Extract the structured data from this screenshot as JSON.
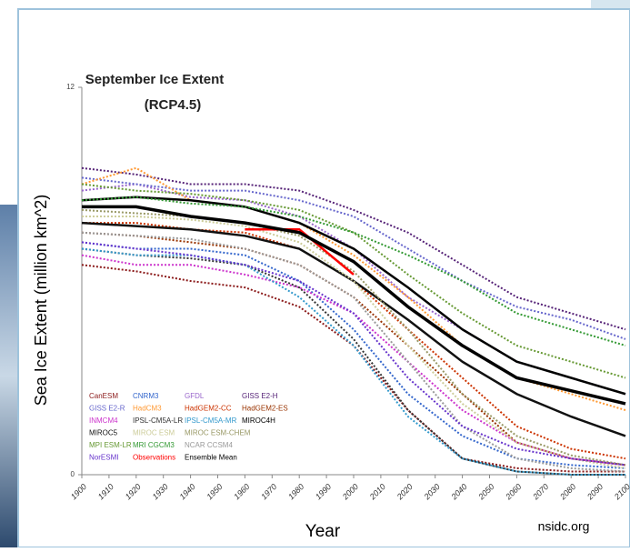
{
  "chart_data": {
    "type": "line",
    "title": "September Ice Extent",
    "subtitle": "(RCP4.5)",
    "y_label": "Sea Ice Extent (million km^2)",
    "x_label": "Year",
    "source": "nsidc.org",
    "x": [
      1900,
      1920,
      1940,
      1960,
      1980,
      2000,
      2020,
      2040,
      2060,
      2080,
      2100
    ],
    "xlim": [
      1900,
      2100
    ],
    "xticks": [
      1900,
      1910,
      1920,
      1930,
      1940,
      1950,
      1960,
      1970,
      1980,
      1990,
      2000,
      2010,
      2020,
      2030,
      2040,
      2050,
      2060,
      2070,
      2080,
      2090,
      2100
    ],
    "ylim": [
      0,
      12
    ],
    "yticks": [
      0,
      12
    ],
    "series": [
      {
        "name": "CanESM",
        "color": "#8b1a1a",
        "values": [
          6.5,
          6.3,
          6.0,
          5.8,
          5.2,
          4.0,
          2.0,
          0.5,
          0.2,
          0.1,
          0.1
        ]
      },
      {
        "name": "CNRM3",
        "color": "#3366cc",
        "values": [
          7.2,
          7.0,
          7.0,
          6.8,
          6.0,
          4.5,
          2.5,
          1.2,
          0.5,
          0.3,
          0.2
        ]
      },
      {
        "name": "GFDL",
        "color": "#9966cc",
        "values": [
          8.8,
          9.0,
          8.6,
          8.5,
          8.0,
          7.0,
          5.5,
          4.5,
          3.5,
          3.0,
          2.5
        ]
      },
      {
        "name": "GISS E2-H",
        "color": "#552277",
        "values": [
          9.5,
          9.3,
          9.0,
          9.0,
          8.8,
          8.2,
          7.5,
          6.5,
          5.5,
          5.0,
          4.5
        ]
      },
      {
        "name": "GISS E2-R",
        "color": "#6666cc",
        "values": [
          9.2,
          9.0,
          8.8,
          8.8,
          8.5,
          8.0,
          7.0,
          6.0,
          5.2,
          4.8,
          4.2
        ]
      },
      {
        "name": "HadCM3",
        "color": "#ff9933",
        "values": [
          9.0,
          9.5,
          8.5,
          8.3,
          7.8,
          6.8,
          5.5,
          4.0,
          3.0,
          2.5,
          2.0
        ]
      },
      {
        "name": "HadGEM2-CC",
        "color": "#cc3300",
        "values": [
          7.8,
          7.8,
          7.6,
          7.5,
          7.0,
          6.0,
          4.5,
          3.0,
          1.5,
          0.8,
          0.5
        ]
      },
      {
        "name": "HadGEM2-ES",
        "color": "#993300",
        "values": [
          7.5,
          7.4,
          7.2,
          7.0,
          6.5,
          5.5,
          4.0,
          2.5,
          1.0,
          0.5,
          0.3
        ]
      },
      {
        "name": "INMCM4",
        "color": "#cc33cc",
        "values": [
          6.8,
          6.5,
          6.5,
          6.2,
          5.8,
          5.0,
          3.5,
          2.0,
          1.0,
          0.5,
          0.3
        ]
      },
      {
        "name": "IPSL-CM5A-LR",
        "color": "#333333",
        "values": [
          7.0,
          6.8,
          6.7,
          6.5,
          5.8,
          4.2,
          2.0,
          0.5,
          0.1,
          0,
          0
        ]
      },
      {
        "name": "IPSL-CM5A-MR",
        "color": "#3399cc",
        "values": [
          7.0,
          6.8,
          6.8,
          6.5,
          5.5,
          4.0,
          1.8,
          0.5,
          0.1,
          0,
          0
        ]
      },
      {
        "name": "MIROC4H",
        "color": "#000000",
        "values": [
          8.5,
          8.6,
          8.5,
          8.3,
          7.8,
          7.0,
          5.8,
          4.5,
          3.5,
          3.0,
          2.5
        ]
      },
      {
        "name": "MIROC5",
        "color": "#111111",
        "values": [
          7.8,
          7.7,
          7.6,
          7.4,
          7.0,
          6.0,
          4.8,
          3.5,
          2.5,
          1.8,
          1.2
        ]
      },
      {
        "name": "MIROC ESM",
        "color": "#cccc99",
        "values": [
          8.0,
          8.0,
          7.9,
          7.7,
          7.2,
          6.0,
          4.0,
          2.2,
          1.0,
          0.5,
          0.2
        ]
      },
      {
        "name": "MIROC ESM-CHEM",
        "color": "#999966",
        "values": [
          8.2,
          8.1,
          8.0,
          7.8,
          7.4,
          6.3,
          4.5,
          2.5,
          1.2,
          0.6,
          0.3
        ]
      },
      {
        "name": "MPI ESM-LR",
        "color": "#669933",
        "values": [
          9.0,
          8.8,
          8.7,
          8.5,
          8.2,
          7.5,
          6.2,
          5.0,
          4.0,
          3.5,
          3.0
        ]
      },
      {
        "name": "MRI CGCM3",
        "color": "#339933",
        "values": [
          8.5,
          8.6,
          8.4,
          8.3,
          8.0,
          7.5,
          6.8,
          6.0,
          5.0,
          4.5,
          4.0
        ]
      },
      {
        "name": "NCAR CCSM4",
        "color": "#999999",
        "values": [
          7.5,
          7.4,
          7.3,
          7.0,
          6.5,
          5.5,
          3.5,
          1.5,
          0.5,
          0.2,
          0.1
        ]
      },
      {
        "name": "NorESMI",
        "color": "#6633cc",
        "values": [
          7.2,
          7.0,
          6.8,
          6.5,
          6.0,
          5.0,
          3.0,
          1.5,
          0.8,
          0.5,
          0.3
        ]
      },
      {
        "name": "Observations",
        "color": "#ff0000",
        "values": [
          null,
          null,
          null,
          7.6,
          7.6,
          6.2,
          null,
          null,
          null,
          null,
          null
        ]
      },
      {
        "name": "Ensemble Mean",
        "color": "#000000",
        "values": [
          8.3,
          8.3,
          8.0,
          7.8,
          7.5,
          6.6,
          5.2,
          4.0,
          3.0,
          2.6,
          2.2
        ]
      }
    ]
  }
}
